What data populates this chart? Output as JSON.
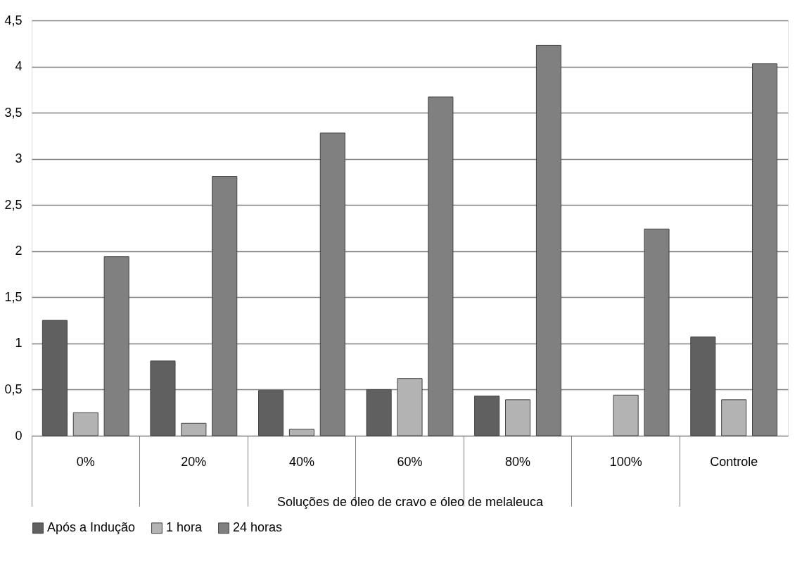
{
  "chart_data": {
    "type": "bar",
    "xlabel": "Soluções de óleo de cravo e óleo de melaleuca",
    "categories": [
      "0%",
      "20%",
      "40%",
      "60%",
      "80%",
      "100%",
      "Controle"
    ],
    "series": [
      {
        "name": "Após a Indução",
        "color": "#606060",
        "values": [
          1.25,
          0.81,
          0.49,
          0.5,
          0.43,
          null,
          1.07
        ]
      },
      {
        "name": "1 hora",
        "color": "#b3b3b3",
        "values": [
          0.25,
          0.135,
          0.07,
          0.62,
          0.39,
          0.44,
          0.39
        ]
      },
      {
        "name": "24 horas",
        "color": "#808080",
        "values": [
          1.94,
          2.81,
          3.28,
          3.67,
          4.23,
          2.24,
          4.03
        ]
      }
    ],
    "ylim": [
      0,
      4.5
    ],
    "yticks": [
      {
        "value": 0,
        "label": "0"
      },
      {
        "value": 0.5,
        "label": "0,5"
      },
      {
        "value": 1,
        "label": "1"
      },
      {
        "value": 1.5,
        "label": "1,5"
      },
      {
        "value": 2,
        "label": "2"
      },
      {
        "value": 2.5,
        "label": "2,5"
      },
      {
        "value": 3,
        "label": "3"
      },
      {
        "value": 3.5,
        "label": "3,5"
      },
      {
        "value": 4,
        "label": "4"
      },
      {
        "value": 4.5,
        "label": "4,5"
      }
    ],
    "grid": "y",
    "legend": "bottom"
  }
}
